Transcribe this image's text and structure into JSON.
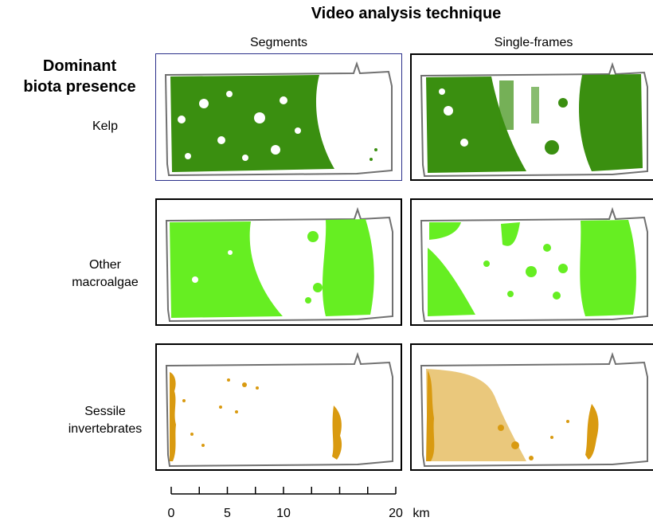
{
  "title": "Video analysis technique",
  "columns": [
    {
      "label": "Segments"
    },
    {
      "label": "Single-frames"
    }
  ],
  "row_header": {
    "line1": "Dominant",
    "line2": "biota presence"
  },
  "rows": [
    {
      "line1": "Kelp",
      "line2": "",
      "color": "#3a8f10"
    },
    {
      "line1": "Other",
      "line2": "macroalgae",
      "color": "#66ee22"
    },
    {
      "line1": "Sessile",
      "line2": "invertebrates",
      "color": "#d99a10"
    }
  ],
  "colors": {
    "outline": "#707070",
    "selected_panel_border": "#2a2f8a"
  },
  "coverage": {
    "kelp_segments": 0.72,
    "kelp_single_frames": 0.62,
    "other_macroalgae_segments": 0.62,
    "other_macroalgae_single_frames": 0.35,
    "sessile_invertebrates_segments": 0.07,
    "sessile_invertebrates_single_frames": 0.2
  },
  "scale": {
    "labels": [
      "0",
      "5",
      "10",
      "20"
    ],
    "values": [
      0,
      5,
      10,
      20
    ],
    "max": 20,
    "unit": "km"
  }
}
